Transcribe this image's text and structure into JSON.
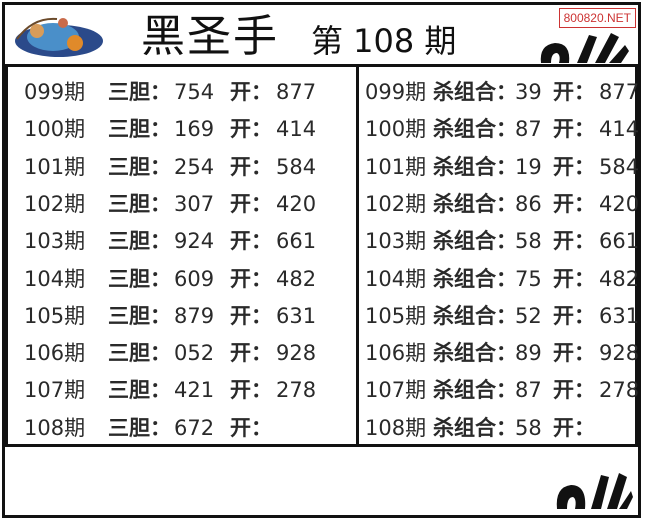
{
  "header": {
    "title": "黑圣手",
    "issue": "第 108 期",
    "watermark": "800820.NET"
  },
  "left_panel": {
    "label": "三胆：",
    "open_label": "开：",
    "rows": [
      {
        "period": "099期",
        "value": "754",
        "open": "877"
      },
      {
        "period": "100期",
        "value": "169",
        "open": "414"
      },
      {
        "period": "101期",
        "value": "254",
        "open": "584"
      },
      {
        "period": "102期",
        "value": "307",
        "open": "420"
      },
      {
        "period": "103期",
        "value": "924",
        "open": "661"
      },
      {
        "period": "104期",
        "value": "609",
        "open": "482"
      },
      {
        "period": "105期",
        "value": "879",
        "open": "631"
      },
      {
        "period": "106期",
        "value": "052",
        "open": "928"
      },
      {
        "period": "107期",
        "value": "421",
        "open": "278"
      },
      {
        "period": "108期",
        "value": "672",
        "open": ""
      }
    ]
  },
  "right_panel": {
    "label": "杀组合：",
    "open_label": "开：",
    "rows": [
      {
        "period": "099期",
        "value": "39",
        "open": "877"
      },
      {
        "period": "100期",
        "value": "87",
        "open": "414"
      },
      {
        "period": "101期",
        "value": "19",
        "open": "584"
      },
      {
        "period": "102期",
        "value": "86",
        "open": "420"
      },
      {
        "period": "103期",
        "value": "58",
        "open": "661"
      },
      {
        "period": "104期",
        "value": "75",
        "open": "482"
      },
      {
        "period": "105期",
        "value": "52",
        "open": "631"
      },
      {
        "period": "106期",
        "value": "89",
        "open": "928"
      },
      {
        "period": "107期",
        "value": "87",
        "open": "278"
      },
      {
        "period": "108期",
        "value": "58",
        "open": ""
      }
    ]
  },
  "icons": {
    "logo": "cartoon-logo",
    "hand": "ok-hand-icon"
  },
  "colors": {
    "border": "#111111",
    "text": "#2a2a2a",
    "watermark": "#cc3333"
  }
}
